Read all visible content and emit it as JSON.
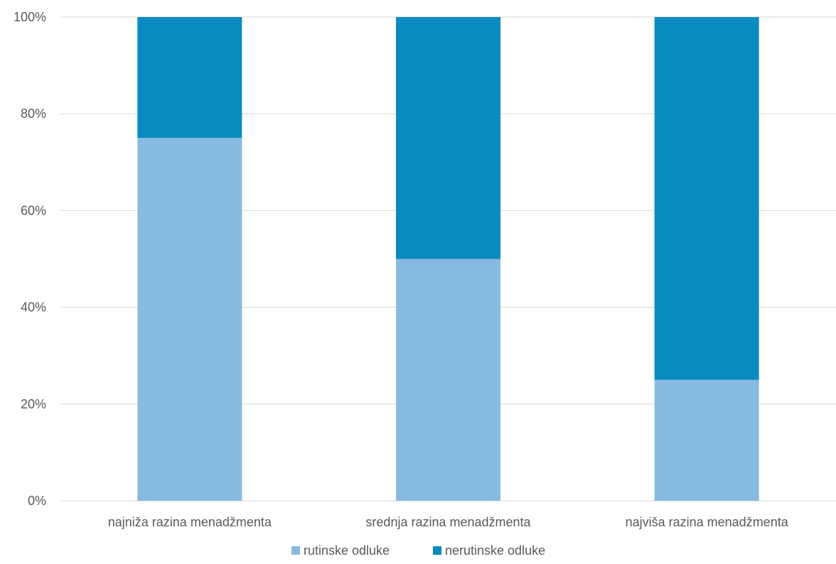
{
  "chart_data": {
    "type": "bar",
    "stacked": true,
    "categories": [
      "najniža razina menadžmenta",
      "srednja razina menadžmenta",
      "najviša razina menadžmenta"
    ],
    "series": [
      {
        "name": "rutinske odluke",
        "values": [
          75,
          50,
          25
        ],
        "color": "#87BAE0"
      },
      {
        "name": "nerutinske odluke",
        "values": [
          25,
          50,
          75
        ],
        "color": "#0A8BBF"
      }
    ],
    "yticks": [
      "0%",
      "20%",
      "40%",
      "60%",
      "80%",
      "100%"
    ],
    "ylim": [
      0,
      100
    ],
    "grid": true,
    "legend_position": "bottom"
  }
}
